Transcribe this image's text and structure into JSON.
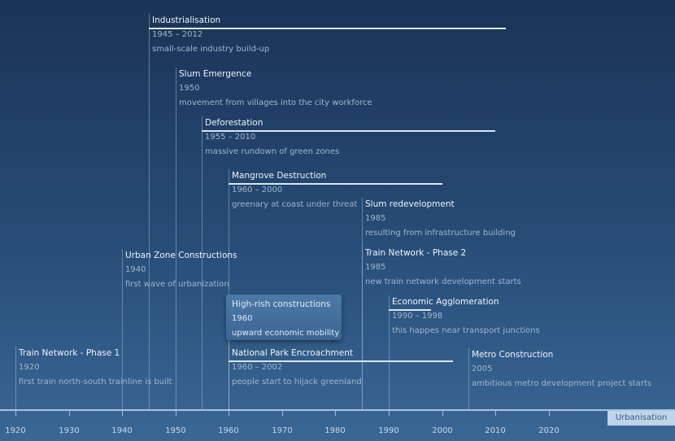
{
  "axis_label": "Urbanisation",
  "axis": {
    "min": 1920,
    "max": 2020,
    "ticks": [
      1920,
      1930,
      1940,
      1950,
      1960,
      1970,
      1980,
      1990,
      2000,
      2010,
      2020
    ]
  },
  "events": [
    {
      "title": "Industrialisation",
      "dates": "1945 – 2012",
      "desc": "small-scale industry build-up",
      "start": 1945,
      "end": 2012
    },
    {
      "title": "Slum Emergence",
      "dates": "1950",
      "desc": "movement from villages into the city workforce",
      "start": 1950
    },
    {
      "title": "Deforestation",
      "dates": "1955 – 2010",
      "desc": "massive rundown of green zones",
      "start": 1955,
      "end": 2010
    },
    {
      "title": "Mangrove Destruction",
      "dates": "1960 – 2000",
      "desc": "greenary at coast under threat",
      "start": 1960,
      "end": 2000
    },
    {
      "title": "Slum redevelopment",
      "dates": "1985",
      "desc": "resulting from infrastructure building",
      "start": 1985
    },
    {
      "title": "Urban Zone Constructions",
      "dates": "1940",
      "desc": "first wave of urbanization",
      "start": 1940
    },
    {
      "title": "Train Network - Phase 2",
      "dates": "1985",
      "desc": "new train network development starts",
      "start": 1985
    },
    {
      "title": "High-rish constructions",
      "dates": "1960",
      "desc": "upward economic mobility",
      "start": 1960,
      "highlight": true
    },
    {
      "title": "Economic Agglomeration",
      "dates": "1990 – 1998",
      "desc": "this happes near transport junctions",
      "start": 1990,
      "end": 1998
    },
    {
      "title": "Train Network - Phase 1",
      "dates": "1920",
      "desc": "first train north-south trainline is built",
      "start": 1920
    },
    {
      "title": "National Park Encroachment",
      "dates": "1960 – 2002",
      "desc": "people start to hijack greenland",
      "start": 1960,
      "end": 2002
    },
    {
      "title": "Metro Construction",
      "dates": "2005",
      "desc": "ambitious metro development project starts",
      "start": 2005
    }
  ]
}
